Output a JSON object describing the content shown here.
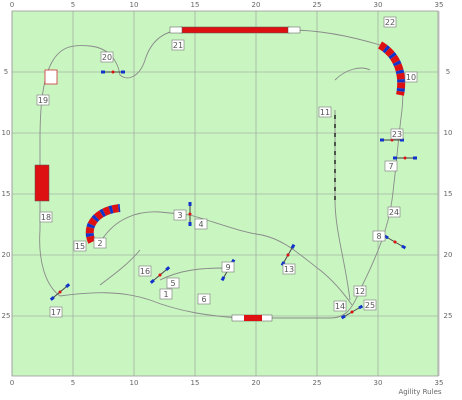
{
  "x_axis": [
    0,
    5,
    10,
    15,
    20,
    25,
    30,
    35
  ],
  "y_axis": [
    5,
    10,
    15,
    20,
    25
  ],
  "obstacle_labels": [
    1,
    2,
    3,
    4,
    5,
    6,
    7,
    8,
    9,
    10,
    11,
    12,
    13,
    14,
    15,
    16,
    17,
    18,
    19,
    20,
    21,
    22,
    23,
    24,
    25
  ],
  "footer": "Agility Rules"
}
